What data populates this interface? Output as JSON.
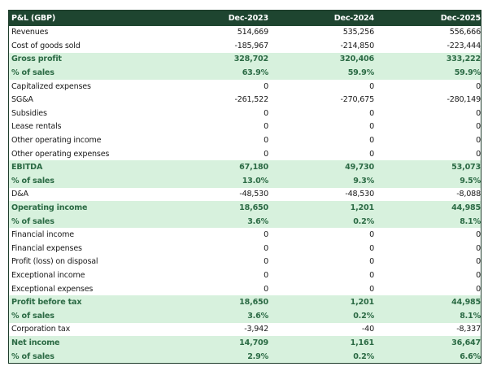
{
  "table": {
    "title": "P&L (GBP)",
    "columns": [
      "Dec-2023",
      "Dec-2024",
      "Dec-2025"
    ],
    "colors": {
      "header_bg": "#1e4530",
      "highlight_bg": "#d7f1dd",
      "highlight_text": "#2b6a44"
    },
    "rows": [
      {
        "label": "Revenues",
        "values": [
          "514,669",
          "535,256",
          "556,666"
        ],
        "highlight": false
      },
      {
        "label": "Cost of goods sold",
        "values": [
          "-185,967",
          "-214,850",
          "-223,444"
        ],
        "highlight": false
      },
      {
        "label": "Gross profit",
        "values": [
          "328,702",
          "320,406",
          "333,222"
        ],
        "highlight": true
      },
      {
        "label": "% of sales",
        "values": [
          "63.9%",
          "59.9%",
          "59.9%"
        ],
        "highlight": true
      },
      {
        "label": "Capitalized expenses",
        "values": [
          "0",
          "0",
          "0"
        ],
        "highlight": false
      },
      {
        "label": "SG&A",
        "values": [
          "-261,522",
          "-270,675",
          "-280,149"
        ],
        "highlight": false
      },
      {
        "label": "Subsidies",
        "values": [
          "0",
          "0",
          "0"
        ],
        "highlight": false
      },
      {
        "label": "Lease rentals",
        "values": [
          "0",
          "0",
          "0"
        ],
        "highlight": false
      },
      {
        "label": "Other operating income",
        "values": [
          "0",
          "0",
          "0"
        ],
        "highlight": false
      },
      {
        "label": "Other operating expenses",
        "values": [
          "0",
          "0",
          "0"
        ],
        "highlight": false
      },
      {
        "label": "EBITDA",
        "values": [
          "67,180",
          "49,730",
          "53,073"
        ],
        "highlight": true
      },
      {
        "label": "% of sales",
        "values": [
          "13.0%",
          "9.3%",
          "9.5%"
        ],
        "highlight": true
      },
      {
        "label": "D&A",
        "values": [
          "-48,530",
          "-48,530",
          "-8,088"
        ],
        "highlight": false
      },
      {
        "label": "Operating income",
        "values": [
          "18,650",
          "1,201",
          "44,985"
        ],
        "highlight": true
      },
      {
        "label": "% of sales",
        "values": [
          "3.6%",
          "0.2%",
          "8.1%"
        ],
        "highlight": true
      },
      {
        "label": "Financial income",
        "values": [
          "0",
          "0",
          "0"
        ],
        "highlight": false
      },
      {
        "label": "Financial expenses",
        "values": [
          "0",
          "0",
          "0"
        ],
        "highlight": false
      },
      {
        "label": "Profit (loss) on disposal",
        "values": [
          "0",
          "0",
          "0"
        ],
        "highlight": false
      },
      {
        "label": "Exceptional income",
        "values": [
          "0",
          "0",
          "0"
        ],
        "highlight": false
      },
      {
        "label": "Exceptional expenses",
        "values": [
          "0",
          "0",
          "0"
        ],
        "highlight": false
      },
      {
        "label": "Profit before tax",
        "values": [
          "18,650",
          "1,201",
          "44,985"
        ],
        "highlight": true
      },
      {
        "label": "% of sales",
        "values": [
          "3.6%",
          "0.2%",
          "8.1%"
        ],
        "highlight": true
      },
      {
        "label": "Corporation tax",
        "values": [
          "-3,942",
          "-40",
          "-8,337"
        ],
        "highlight": false
      },
      {
        "label": "Net income",
        "values": [
          "14,709",
          "1,161",
          "36,647"
        ],
        "highlight": true
      },
      {
        "label": "% of sales",
        "values": [
          "2.9%",
          "0.2%",
          "6.6%"
        ],
        "highlight": true
      }
    ]
  }
}
